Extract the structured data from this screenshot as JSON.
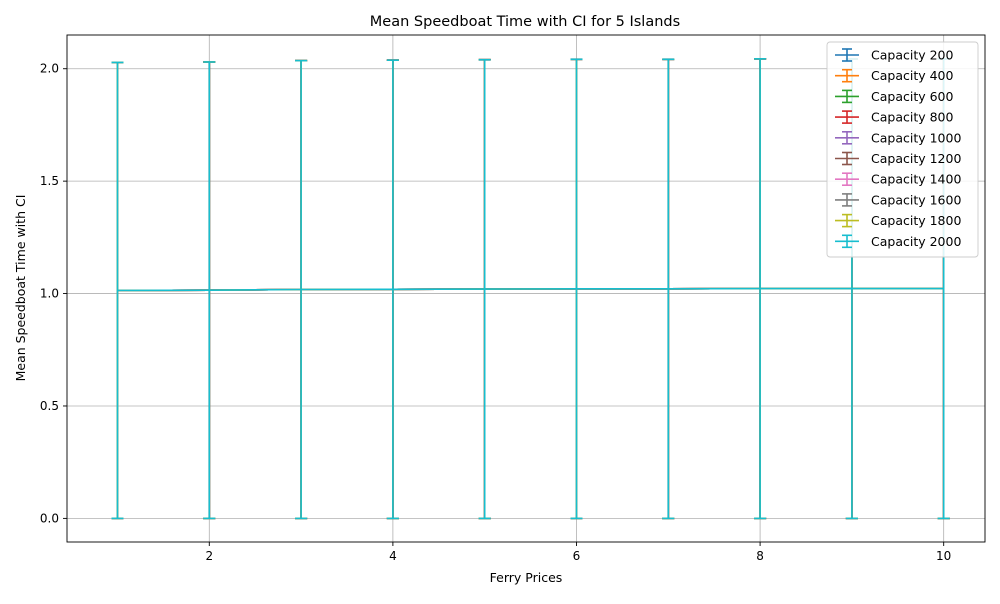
{
  "chart_data": {
    "type": "line",
    "title": "Mean Speedboat Time with CI for 5 Islands",
    "xlabel": "Ferry Prices",
    "ylabel": "Mean Speedboat Time with CI",
    "xlim": [
      0.45,
      10.45
    ],
    "ylim": [
      -0.105,
      2.15
    ],
    "x_ticks": [
      2,
      4,
      6,
      8,
      10
    ],
    "y_ticks": [
      0.0,
      0.5,
      1.0,
      1.5,
      2.0
    ],
    "x_tick_labels": [
      "2",
      "4",
      "6",
      "8",
      "10"
    ],
    "y_tick_labels": [
      "0.0",
      "0.5",
      "1.0",
      "1.5",
      "2.0"
    ],
    "grid": true,
    "legend_position": "top-right",
    "x": [
      1,
      2,
      3,
      4,
      5,
      6,
      7,
      8,
      9,
      10
    ],
    "series": [
      {
        "name": "Capacity 200",
        "color": "#1f77b4",
        "values": [
          1.014,
          1.015,
          1.018,
          1.019,
          1.02,
          1.021,
          1.021,
          1.022,
          1.022,
          1.022
        ],
        "ci_low": [
          0,
          0,
          0,
          0,
          0,
          0,
          0,
          0,
          0,
          0
        ],
        "ci_high": [
          2.028,
          2.03,
          2.036,
          2.038,
          2.04,
          2.042,
          2.042,
          2.044,
          2.044,
          2.044
        ]
      },
      {
        "name": "Capacity 400",
        "color": "#ff7f0e",
        "values": [
          1.014,
          1.015,
          1.018,
          1.019,
          1.02,
          1.021,
          1.021,
          1.022,
          1.022,
          1.022
        ],
        "ci_low": [
          0,
          0,
          0,
          0,
          0,
          0,
          0,
          0,
          0,
          0
        ],
        "ci_high": [
          2.028,
          2.03,
          2.036,
          2.038,
          2.04,
          2.042,
          2.042,
          2.044,
          2.044,
          2.044
        ]
      },
      {
        "name": "Capacity 600",
        "color": "#2ca02c",
        "values": [
          1.014,
          1.015,
          1.018,
          1.019,
          1.02,
          1.021,
          1.021,
          1.022,
          1.022,
          1.022
        ],
        "ci_low": [
          0,
          0,
          0,
          0,
          0,
          0,
          0,
          0,
          0,
          0
        ],
        "ci_high": [
          2.028,
          2.03,
          2.036,
          2.038,
          2.04,
          2.042,
          2.042,
          2.044,
          2.044,
          2.044
        ]
      },
      {
        "name": "Capacity 800",
        "color": "#d62728",
        "values": [
          1.014,
          1.015,
          1.018,
          1.019,
          1.02,
          1.021,
          1.021,
          1.022,
          1.022,
          1.022
        ],
        "ci_low": [
          0,
          0,
          0,
          0,
          0,
          0,
          0,
          0,
          0,
          0
        ],
        "ci_high": [
          2.028,
          2.03,
          2.036,
          2.038,
          2.04,
          2.042,
          2.042,
          2.044,
          2.044,
          2.044
        ]
      },
      {
        "name": "Capacity 1000",
        "color": "#9467bd",
        "values": [
          1.014,
          1.015,
          1.018,
          1.019,
          1.02,
          1.021,
          1.021,
          1.022,
          1.022,
          1.022
        ],
        "ci_low": [
          0,
          0,
          0,
          0,
          0,
          0,
          0,
          0,
          0,
          0
        ],
        "ci_high": [
          2.028,
          2.03,
          2.036,
          2.038,
          2.04,
          2.042,
          2.042,
          2.044,
          2.044,
          2.044
        ]
      },
      {
        "name": "Capacity 1200",
        "color": "#8c564b",
        "values": [
          1.014,
          1.015,
          1.018,
          1.019,
          1.02,
          1.021,
          1.021,
          1.022,
          1.022,
          1.022
        ],
        "ci_low": [
          0,
          0,
          0,
          0,
          0,
          0,
          0,
          0,
          0,
          0
        ],
        "ci_high": [
          2.028,
          2.03,
          2.036,
          2.038,
          2.04,
          2.042,
          2.042,
          2.044,
          2.044,
          2.044
        ]
      },
      {
        "name": "Capacity 1400",
        "color": "#e377c2",
        "values": [
          1.014,
          1.015,
          1.018,
          1.019,
          1.02,
          1.021,
          1.021,
          1.022,
          1.022,
          1.022
        ],
        "ci_low": [
          0,
          0,
          0,
          0,
          0,
          0,
          0,
          0,
          0,
          0
        ],
        "ci_high": [
          2.028,
          2.03,
          2.036,
          2.038,
          2.04,
          2.042,
          2.042,
          2.044,
          2.044,
          2.044
        ]
      },
      {
        "name": "Capacity 1600",
        "color": "#7f7f7f",
        "values": [
          1.014,
          1.015,
          1.018,
          1.019,
          1.02,
          1.021,
          1.021,
          1.022,
          1.022,
          1.022
        ],
        "ci_low": [
          0,
          0,
          0,
          0,
          0,
          0,
          0,
          0,
          0,
          0
        ],
        "ci_high": [
          2.028,
          2.03,
          2.036,
          2.038,
          2.04,
          2.042,
          2.042,
          2.044,
          2.044,
          2.044
        ]
      },
      {
        "name": "Capacity 1800",
        "color": "#bcbd22",
        "values": [
          1.014,
          1.015,
          1.018,
          1.019,
          1.02,
          1.021,
          1.021,
          1.022,
          1.022,
          1.022
        ],
        "ci_low": [
          0,
          0,
          0,
          0,
          0,
          0,
          0,
          0,
          0,
          0
        ],
        "ci_high": [
          2.028,
          2.03,
          2.036,
          2.038,
          2.04,
          2.042,
          2.042,
          2.044,
          2.044,
          2.044
        ]
      },
      {
        "name": "Capacity 2000",
        "color": "#17becf",
        "values": [
          1.014,
          1.015,
          1.018,
          1.019,
          1.02,
          1.021,
          1.021,
          1.022,
          1.022,
          1.022
        ],
        "ci_low": [
          0,
          0,
          0,
          0,
          0,
          0,
          0,
          0,
          0,
          0
        ],
        "ci_high": [
          2.028,
          2.03,
          2.036,
          2.038,
          2.04,
          2.042,
          2.042,
          2.044,
          2.044,
          2.044
        ]
      }
    ]
  }
}
